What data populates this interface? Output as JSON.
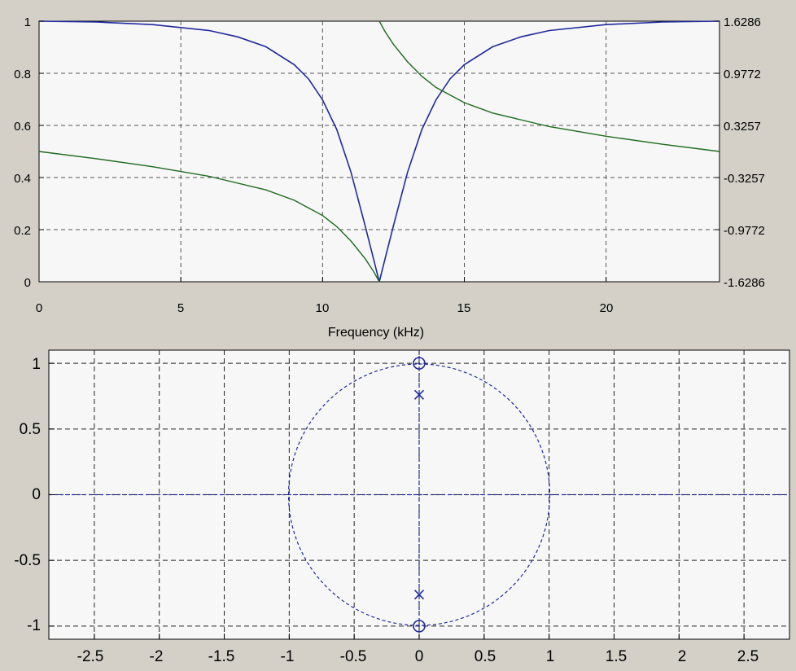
{
  "chart_data": [
    {
      "type": "line",
      "title": "",
      "xlabel": "Frequency (kHz)",
      "ylabel": "",
      "xlim": [
        0,
        24
      ],
      "ylim": [
        0,
        1
      ],
      "ylim_right": [
        -1.6286,
        1.6286
      ],
      "x_ticks": [
        "0",
        "5",
        "10",
        "15",
        "20"
      ],
      "y_ticks": [
        "0",
        "0.2",
        "0.4",
        "0.6",
        "0.8",
        "1"
      ],
      "y_ticks_right": [
        "-1.6286",
        "-0.9772",
        "-0.3257",
        "0.3257",
        "0.9772",
        "1.6286"
      ],
      "grid": true,
      "colors": {
        "magnitude": "#1f2a9c",
        "phase": "#1e6b1e"
      },
      "series": [
        {
          "axis": "left",
          "x": [
            0,
            2,
            4,
            6,
            7,
            8,
            9,
            9.5,
            10,
            10.5,
            11,
            11.5,
            11.8,
            12,
            12.2,
            12.5,
            13,
            13.5,
            14,
            14.5,
            15,
            16,
            17,
            18,
            20,
            22,
            24
          ],
          "values": [
            1.0,
            0.997,
            0.987,
            0.964,
            0.94,
            0.902,
            0.833,
            0.779,
            0.698,
            0.584,
            0.421,
            0.215,
            0.087,
            0.0,
            0.087,
            0.215,
            0.421,
            0.584,
            0.698,
            0.779,
            0.833,
            0.902,
            0.94,
            0.964,
            0.987,
            0.997,
            1.0
          ]
        },
        {
          "axis": "right",
          "x": [
            0,
            2,
            4,
            6,
            8,
            9,
            10,
            10.5,
            11,
            11.5,
            11.8,
            12,
            12.0001,
            12.2,
            12.5,
            13,
            13.5,
            14,
            15,
            16,
            18,
            20,
            22,
            24
          ],
          "values": [
            0.0,
            -0.09,
            -0.19,
            -0.31,
            -0.48,
            -0.61,
            -0.8,
            -0.94,
            -1.12,
            -1.34,
            -1.5,
            -1.6286,
            1.6286,
            1.5,
            1.34,
            1.12,
            0.94,
            0.8,
            0.61,
            0.48,
            0.31,
            0.19,
            0.09,
            0.0
          ]
        }
      ]
    },
    {
      "type": "scatter",
      "title": "",
      "xlabel": "",
      "ylabel": "",
      "xlim": [
        -2.85,
        2.85
      ],
      "ylim": [
        -1.1,
        1.1
      ],
      "x_ticks": [
        "-2.5",
        "-2",
        "-1.5",
        "-1",
        "-0.5",
        "0",
        "0.5",
        "1",
        "1.5",
        "2",
        "2.5"
      ],
      "y_ticks": [
        "-1",
        "-0.5",
        "0",
        "0.5",
        "1"
      ],
      "grid": true,
      "unit_circle": true,
      "colors": {
        "marker": "#1f2a9c"
      },
      "zeros": [
        [
          0,
          1
        ],
        [
          0,
          -1
        ]
      ],
      "poles": [
        [
          0,
          0.76
        ],
        [
          0,
          -0.76
        ]
      ]
    }
  ]
}
